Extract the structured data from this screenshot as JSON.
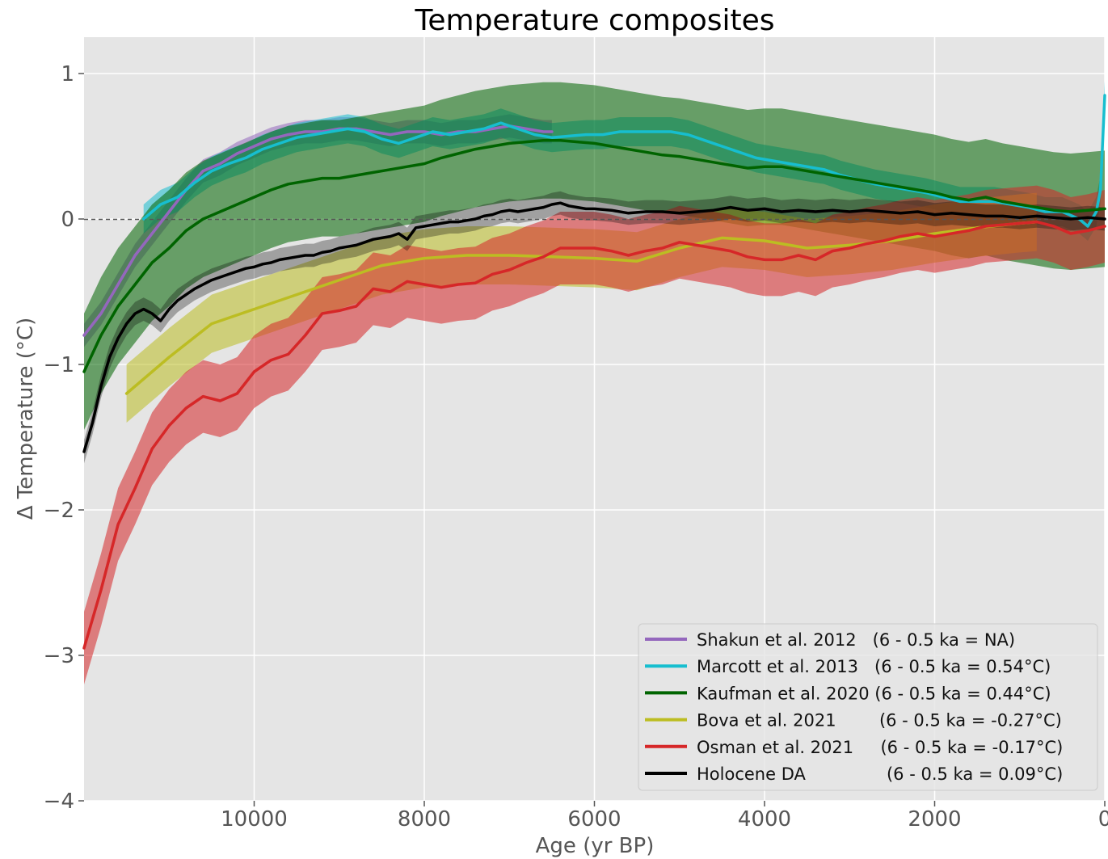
{
  "chart_data": {
    "type": "line",
    "title": "Temperature composites",
    "xlabel": "Age (yr BP)",
    "ylabel": "Δ Temperature (°C)",
    "xlim": [
      12000,
      0
    ],
    "ylim": [
      -4,
      1.25
    ],
    "x_ticks": [
      10000,
      8000,
      6000,
      4000,
      2000,
      0
    ],
    "x_tick_labels": [
      "10000",
      "8000",
      "6000",
      "4000",
      "2000",
      "0"
    ],
    "y_ticks": [
      1,
      0,
      -1,
      -2,
      -3,
      -4
    ],
    "y_tick_labels": [
      "1",
      "0",
      "−1",
      "−2",
      "−3",
      "−4"
    ],
    "grid": true,
    "reference_line": 0,
    "legend_position": "bottom-right",
    "series": [
      {
        "name": "Shakun et al. 2012",
        "legend_text": "Shakun et al. 2012   (6 - 0.5 ka = NA)",
        "color": "#9467bd",
        "x": [
          12000,
          11800,
          11600,
          11400,
          11200,
          11000,
          10800,
          10600,
          10400,
          10200,
          10000,
          9800,
          9600,
          9400,
          9200,
          9000,
          8800,
          8600,
          8400,
          8200,
          8000,
          7800,
          7600,
          7400,
          7200,
          7000,
          6800,
          6600,
          6500
        ],
        "values": [
          -0.8,
          -0.65,
          -0.45,
          -0.25,
          -0.1,
          0.05,
          0.2,
          0.33,
          0.38,
          0.45,
          0.5,
          0.55,
          0.58,
          0.6,
          0.6,
          0.62,
          0.62,
          0.6,
          0.58,
          0.6,
          0.6,
          0.58,
          0.6,
          0.6,
          0.62,
          0.64,
          0.62,
          0.6,
          0.6
        ],
        "band": 0.08
      },
      {
        "name": "Marcott et al. 2013",
        "legend_text": "Marcott et al. 2013   (6 - 0.5 ka = 0.54°C)",
        "color": "#17becf",
        "x": [
          11300,
          11100,
          10900,
          10700,
          10500,
          10300,
          10100,
          9900,
          9700,
          9500,
          9300,
          9100,
          8900,
          8700,
          8500,
          8300,
          8100,
          7900,
          7700,
          7500,
          7300,
          7100,
          6900,
          6700,
          6500,
          6300,
          6100,
          5900,
          5700,
          5500,
          5300,
          5100,
          4900,
          4700,
          4500,
          4300,
          4100,
          3900,
          3700,
          3500,
          3300,
          3100,
          2900,
          2700,
          2500,
          2300,
          2100,
          1900,
          1700,
          1500,
          1300,
          1100,
          900,
          700,
          500,
          300,
          200,
          100,
          50,
          0
        ],
        "values": [
          0.0,
          0.1,
          0.15,
          0.25,
          0.33,
          0.38,
          0.42,
          0.48,
          0.52,
          0.56,
          0.58,
          0.6,
          0.62,
          0.6,
          0.55,
          0.52,
          0.56,
          0.6,
          0.58,
          0.6,
          0.62,
          0.66,
          0.62,
          0.58,
          0.56,
          0.57,
          0.58,
          0.58,
          0.6,
          0.6,
          0.6,
          0.6,
          0.58,
          0.54,
          0.5,
          0.46,
          0.42,
          0.4,
          0.38,
          0.36,
          0.34,
          0.3,
          0.27,
          0.24,
          0.22,
          0.2,
          0.18,
          0.15,
          0.12,
          0.12,
          0.12,
          0.1,
          0.08,
          0.05,
          0.05,
          0.0,
          -0.05,
          0.05,
          0.2,
          0.85
        ],
        "band": 0.1
      },
      {
        "name": "Kaufman et al. 2020",
        "legend_text": "Kaufman et al. 2020 (6 - 0.5 ka = 0.44°C)",
        "color": "#006400",
        "x": [
          12000,
          11800,
          11600,
          11400,
          11200,
          11000,
          10800,
          10600,
          10400,
          10200,
          10000,
          9800,
          9600,
          9400,
          9200,
          9000,
          8800,
          8600,
          8400,
          8200,
          8000,
          7800,
          7600,
          7400,
          7200,
          7000,
          6800,
          6600,
          6400,
          6200,
          6000,
          5800,
          5600,
          5400,
          5200,
          5000,
          4800,
          4600,
          4400,
          4200,
          4000,
          3800,
          3600,
          3400,
          3200,
          3000,
          2800,
          2600,
          2400,
          2200,
          2000,
          1800,
          1600,
          1400,
          1200,
          1000,
          800,
          600,
          400,
          200,
          0
        ],
        "values": [
          -1.05,
          -0.8,
          -0.6,
          -0.45,
          -0.3,
          -0.2,
          -0.08,
          0.0,
          0.05,
          0.1,
          0.15,
          0.2,
          0.24,
          0.26,
          0.28,
          0.28,
          0.3,
          0.32,
          0.34,
          0.36,
          0.38,
          0.42,
          0.45,
          0.48,
          0.5,
          0.52,
          0.53,
          0.54,
          0.54,
          0.53,
          0.52,
          0.5,
          0.48,
          0.46,
          0.44,
          0.43,
          0.41,
          0.39,
          0.37,
          0.35,
          0.36,
          0.36,
          0.34,
          0.32,
          0.3,
          0.28,
          0.26,
          0.24,
          0.22,
          0.2,
          0.18,
          0.15,
          0.13,
          0.15,
          0.12,
          0.1,
          0.08,
          0.06,
          0.05,
          0.06,
          0.07
        ],
        "band": 0.4
      },
      {
        "name": "Bova et al. 2021",
        "legend_text": "Bova et al. 2021        (6 - 0.5 ka = -0.27°C)",
        "color": "#bcbd22",
        "x": [
          11500,
          11000,
          10500,
          10000,
          9500,
          9000,
          8500,
          8000,
          7500,
          7000,
          6500,
          6000,
          5500,
          5000,
          4500,
          4000,
          3500,
          3000,
          2500,
          2000,
          1500,
          1000,
          800
        ],
        "values": [
          -1.2,
          -0.95,
          -0.72,
          -0.62,
          -0.52,
          -0.42,
          -0.32,
          -0.27,
          -0.25,
          -0.25,
          -0.26,
          -0.27,
          -0.29,
          -0.2,
          -0.13,
          -0.15,
          -0.2,
          -0.18,
          -0.15,
          -0.1,
          -0.06,
          -0.03,
          -0.02
        ],
        "band": 0.2
      },
      {
        "name": "Osman et al. 2021",
        "legend_text": "Osman et al. 2021     (6 - 0.5 ka = -0.17°C)",
        "color": "#d62728",
        "x": [
          12000,
          11800,
          11600,
          11400,
          11200,
          11000,
          10800,
          10600,
          10400,
          10200,
          10000,
          9800,
          9600,
          9400,
          9200,
          9000,
          8800,
          8600,
          8400,
          8200,
          8000,
          7800,
          7600,
          7400,
          7200,
          7000,
          6800,
          6600,
          6400,
          6200,
          6000,
          5800,
          5600,
          5400,
          5200,
          5000,
          4800,
          4600,
          4400,
          4200,
          4000,
          3800,
          3600,
          3400,
          3200,
          3000,
          2800,
          2600,
          2400,
          2200,
          2000,
          1800,
          1600,
          1400,
          1200,
          1000,
          800,
          600,
          400,
          200,
          0
        ],
        "values": [
          -2.95,
          -2.55,
          -2.1,
          -1.85,
          -1.58,
          -1.42,
          -1.3,
          -1.22,
          -1.25,
          -1.2,
          -1.05,
          -0.97,
          -0.93,
          -0.8,
          -0.65,
          -0.63,
          -0.6,
          -0.48,
          -0.5,
          -0.43,
          -0.45,
          -0.47,
          -0.45,
          -0.44,
          -0.38,
          -0.35,
          -0.3,
          -0.26,
          -0.2,
          -0.2,
          -0.2,
          -0.22,
          -0.25,
          -0.22,
          -0.2,
          -0.16,
          -0.18,
          -0.2,
          -0.22,
          -0.26,
          -0.28,
          -0.28,
          -0.25,
          -0.28,
          -0.22,
          -0.2,
          -0.17,
          -0.15,
          -0.12,
          -0.1,
          -0.12,
          -0.1,
          -0.08,
          -0.05,
          -0.04,
          -0.03,
          -0.02,
          -0.05,
          -0.1,
          -0.08,
          -0.05
        ],
        "band": 0.25
      },
      {
        "name": "Holocene DA",
        "legend_text": "Holocene DA               (6 - 0.5 ka = 0.09°C)",
        "color": "#000000",
        "x": [
          12000,
          11900,
          11800,
          11700,
          11600,
          11500,
          11400,
          11300,
          11200,
          11100,
          11000,
          10900,
          10800,
          10700,
          10600,
          10500,
          10400,
          10300,
          10200,
          10100,
          10000,
          9900,
          9800,
          9700,
          9600,
          9500,
          9400,
          9300,
          9200,
          9100,
          9000,
          8900,
          8800,
          8700,
          8600,
          8500,
          8400,
          8300,
          8200,
          8100,
          8000,
          7900,
          7800,
          7700,
          7600,
          7500,
          7400,
          7300,
          7200,
          7100,
          7000,
          6900,
          6800,
          6700,
          6600,
          6500,
          6400,
          6300,
          6200,
          6100,
          6000,
          5800,
          5600,
          5400,
          5200,
          5000,
          4800,
          4600,
          4400,
          4200,
          4000,
          3800,
          3600,
          3400,
          3200,
          3000,
          2800,
          2600,
          2400,
          2200,
          2000,
          1800,
          1600,
          1400,
          1200,
          1000,
          800,
          600,
          400,
          200,
          0
        ],
        "values": [
          -1.6,
          -1.4,
          -1.15,
          -0.95,
          -0.82,
          -0.72,
          -0.65,
          -0.62,
          -0.65,
          -0.7,
          -0.62,
          -0.56,
          -0.52,
          -0.48,
          -0.45,
          -0.42,
          -0.4,
          -0.38,
          -0.36,
          -0.34,
          -0.33,
          -0.31,
          -0.3,
          -0.28,
          -0.27,
          -0.26,
          -0.25,
          -0.25,
          -0.23,
          -0.22,
          -0.2,
          -0.19,
          -0.18,
          -0.16,
          -0.14,
          -0.13,
          -0.12,
          -0.1,
          -0.14,
          -0.06,
          -0.05,
          -0.04,
          -0.03,
          -0.02,
          -0.02,
          -0.01,
          0.0,
          0.02,
          0.03,
          0.05,
          0.06,
          0.05,
          0.06,
          0.07,
          0.08,
          0.1,
          0.11,
          0.09,
          0.08,
          0.07,
          0.07,
          0.06,
          0.04,
          0.05,
          0.05,
          0.04,
          0.05,
          0.06,
          0.08,
          0.06,
          0.07,
          0.05,
          0.06,
          0.05,
          0.06,
          0.05,
          0.06,
          0.05,
          0.04,
          0.05,
          0.03,
          0.04,
          0.03,
          0.02,
          0.02,
          0.01,
          0.02,
          0.01,
          0.0,
          0.01,
          0.0
        ],
        "band": 0.08
      }
    ]
  }
}
